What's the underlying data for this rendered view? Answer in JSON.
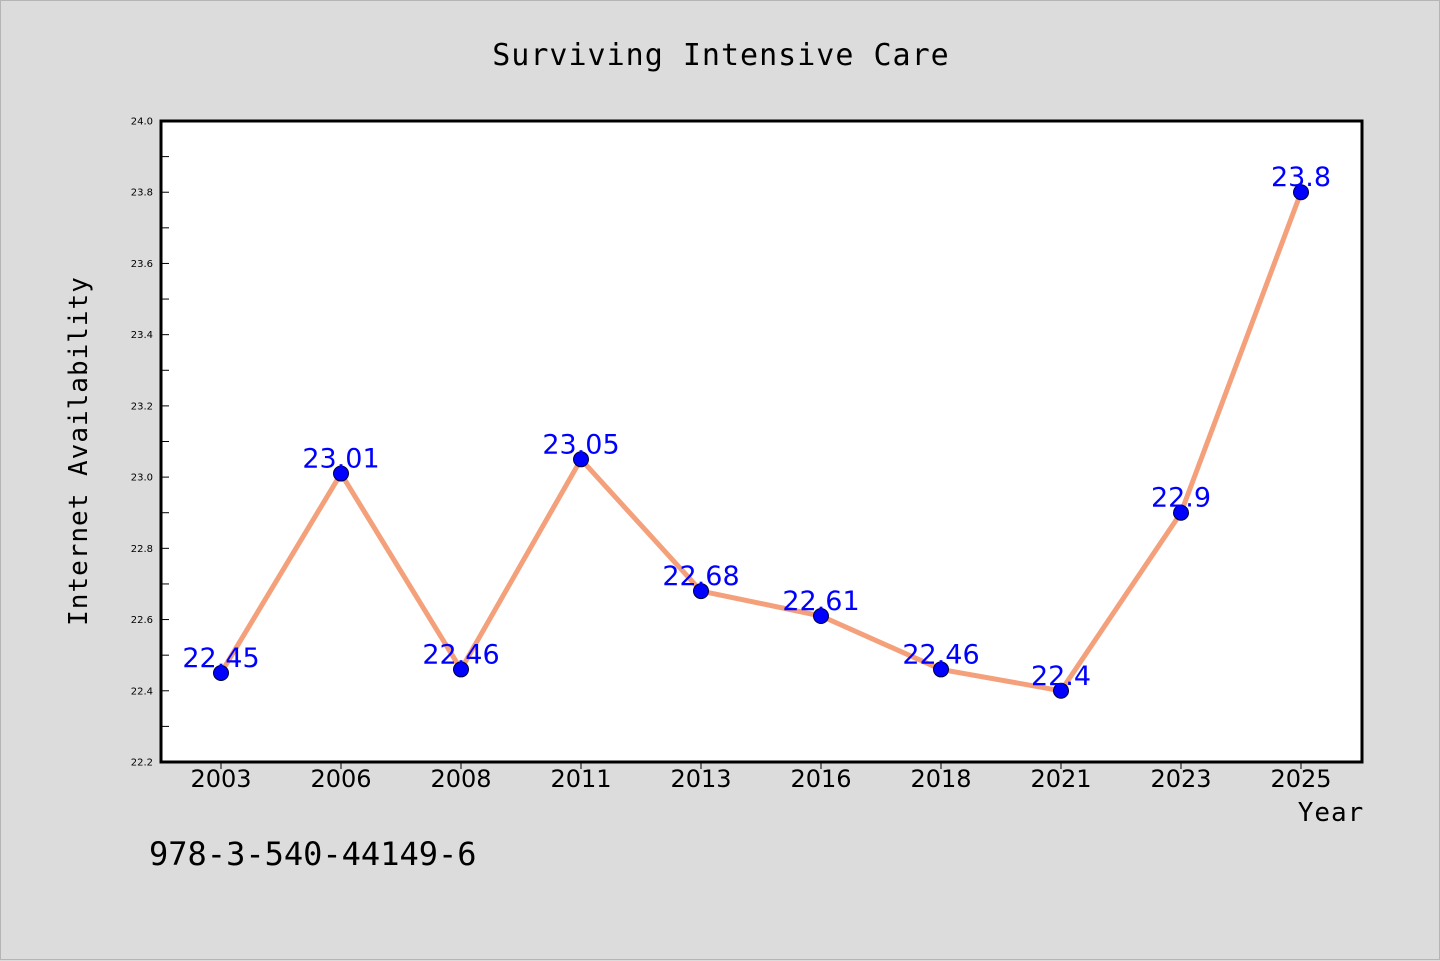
{
  "chart_data": {
    "type": "line",
    "title": "Surviving Intensive Care",
    "xlabel": "Year",
    "ylabel": "Internet Availability",
    "categories": [
      "2003",
      "2006",
      "2008",
      "2011",
      "2013",
      "2016",
      "2018",
      "2021",
      "2023",
      "2025"
    ],
    "series": [
      {
        "values": [
          22.45,
          23.01,
          22.46,
          23.05,
          22.68,
          22.61,
          22.46,
          22.4,
          22.9,
          23.8
        ],
        "labels": [
          "22.45",
          "23.01",
          "22.46",
          "23.05",
          "22.68",
          "22.61",
          "22.46",
          "22.4",
          "22.9",
          "23.8"
        ]
      }
    ],
    "ylim": [
      22.2,
      24.0
    ],
    "yticks": [
      "22.2",
      "22.4",
      "22.6",
      "22.8",
      "23.0",
      "23.2",
      "23.4",
      "23.6",
      "23.8",
      "24.0"
    ],
    "grid": false,
    "colors": {
      "line": "#f4a07a",
      "marker": "#0000ff",
      "data_label": "#0000ff",
      "background": "#dcdcdc",
      "plot_background": "#ffffff"
    }
  },
  "footer": {
    "code": "978-3-540-44149-6"
  }
}
